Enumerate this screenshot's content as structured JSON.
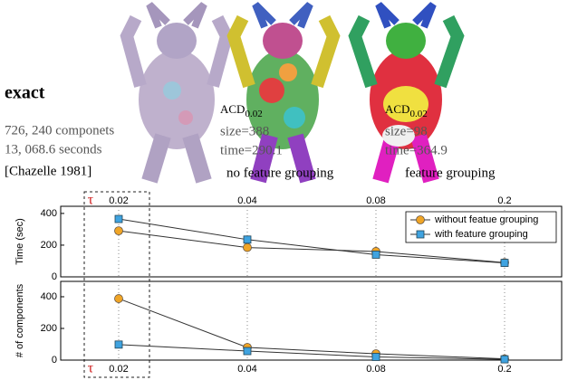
{
  "panels": [
    {
      "title": "exact",
      "lines": [
        "726, 240 componets",
        "13, 068.6 seconds"
      ],
      "citation": "[Chazelle 1981]"
    },
    {
      "method": {
        "text": "ACD",
        "subscript": "0.02"
      },
      "lines": [
        "size=388",
        "time=290.1"
      ],
      "caption": "no feature grouping"
    },
    {
      "method": {
        "text": "ACD",
        "subscript": "0.02"
      },
      "lines": [
        "size=98",
        "time=364.9"
      ],
      "caption": "feature grouping"
    }
  ],
  "chart_data": [
    {
      "type": "line",
      "xlabel": "τ",
      "ylabel": "Time (sec)",
      "categories": [
        "0.02",
        "0.04",
        "0.08",
        "0.2"
      ],
      "ylim": [
        0,
        445
      ],
      "yticks": [
        0,
        200,
        400
      ],
      "legend": "upper right",
      "series": [
        {
          "name": "without featue grouping",
          "color": "#f0a526",
          "marker": "circle",
          "values": [
            290.1,
            185,
            160,
            90
          ]
        },
        {
          "name": "with feature grouping",
          "color": "#3fa3e0",
          "marker": "square",
          "values": [
            364.9,
            235,
            140,
            88
          ]
        }
      ]
    },
    {
      "type": "line",
      "xlabel": "τ",
      "ylabel": "# of components",
      "categories": [
        "0.02",
        "0.04",
        "0.08",
        "0.2"
      ],
      "ylim": [
        0,
        497
      ],
      "yticks": [
        0,
        200,
        400
      ],
      "series": [
        {
          "color": "#f0a526",
          "marker": "circle",
          "values": [
            388,
            80,
            40,
            8
          ]
        },
        {
          "color": "#3fa3e0",
          "marker": "square",
          "values": [
            98,
            57,
            20,
            5
          ]
        }
      ]
    }
  ]
}
